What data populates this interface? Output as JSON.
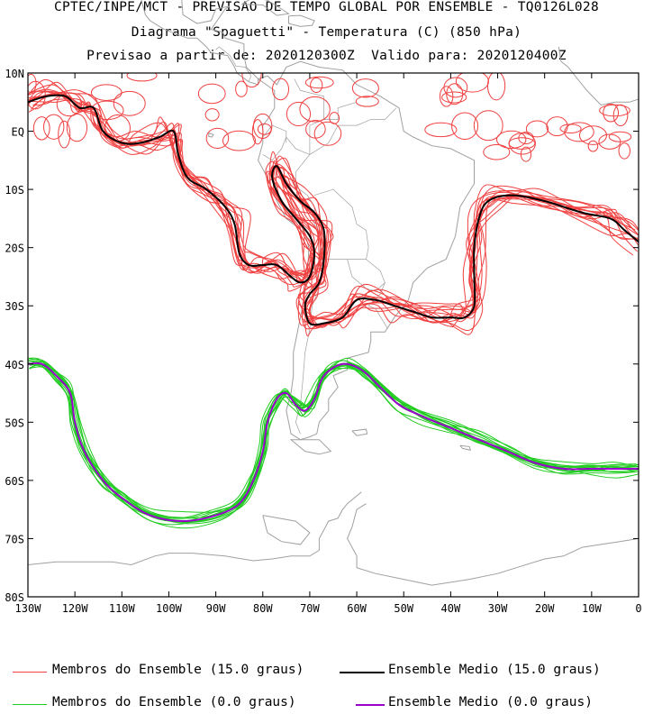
{
  "header": {
    "line1": "CPTEC/INPE/MCT - PREVISAO DE TEMPO GLOBAL POR ENSEMBLE - TQ0126L028",
    "line2": "Diagrama \"Spaguetti\" - Temperatura (C) (850 hPa)",
    "line3": "Previsao a partir de: 2020120300Z  Valido para: 2020120400Z"
  },
  "legend": {
    "members_15": "Membros do Ensemble (15.0 graus)",
    "mean_15": "Ensemble Medio (15.0 graus)",
    "members_0": "Membros do Ensemble (0.0 graus)",
    "mean_0": "Ensemble Medio (0.0 graus)"
  },
  "colors": {
    "members_15": "#f04040",
    "mean_15": "#000000",
    "members_0": "#22cc22",
    "mean_0": "#9900cc",
    "coast": "#a0a0a0"
  },
  "chart_data": {
    "type": "line",
    "title": "Diagrama \"Spaguetti\" - Temperatura (C) (850 hPa)",
    "x_ticks": [
      "130W",
      "120W",
      "110W",
      "100W",
      "90W",
      "80W",
      "70W",
      "60W",
      "50W",
      "40W",
      "30W",
      "20W",
      "10W",
      "0"
    ],
    "y_ticks": [
      "10N",
      "EQ",
      "10S",
      "20S",
      "30S",
      "40S",
      "50S",
      "60S",
      "70S",
      "80S"
    ],
    "xlim": [
      -130,
      0
    ],
    "ylim": [
      -80,
      10
    ],
    "series": [
      {
        "name": "Ensemble Medio (15.0 graus)",
        "role": "mean_15",
        "points": [
          [
            -130,
            5
          ],
          [
            -126,
            6
          ],
          [
            -122,
            6
          ],
          [
            -119,
            4
          ],
          [
            -116,
            4
          ],
          [
            -114,
            0
          ],
          [
            -110,
            -2
          ],
          [
            -106,
            -2
          ],
          [
            -102,
            -1
          ],
          [
            -99,
            0
          ],
          [
            -98,
            -4
          ],
          [
            -96,
            -8
          ],
          [
            -92,
            -10
          ],
          [
            -88,
            -13
          ],
          [
            -86,
            -16
          ],
          [
            -85,
            -21
          ],
          [
            -83,
            -23
          ],
          [
            -80,
            -23
          ],
          [
            -77,
            -23
          ],
          [
            -74,
            -25
          ],
          [
            -72,
            -26
          ],
          [
            -70,
            -25
          ],
          [
            -69,
            -21
          ],
          [
            -70,
            -18
          ],
          [
            -73,
            -15
          ],
          [
            -76,
            -12
          ],
          [
            -78,
            -8
          ],
          [
            -77,
            -6
          ],
          [
            -75,
            -9
          ],
          [
            -72,
            -12
          ],
          [
            -69,
            -14
          ],
          [
            -67,
            -17
          ],
          [
            -67,
            -22
          ],
          [
            -68,
            -26
          ],
          [
            -70,
            -28
          ],
          [
            -71,
            -30
          ],
          [
            -70,
            -33
          ],
          [
            -67,
            -33
          ],
          [
            -63,
            -32
          ],
          [
            -60,
            -29
          ],
          [
            -56,
            -29
          ],
          [
            -52,
            -30
          ],
          [
            -48,
            -31
          ],
          [
            -44,
            -32
          ],
          [
            -40,
            -32
          ],
          [
            -37,
            -32
          ],
          [
            -35,
            -30
          ],
          [
            -35,
            -25
          ],
          [
            -35,
            -20
          ],
          [
            -34,
            -15
          ],
          [
            -32,
            -12
          ],
          [
            -27,
            -11
          ],
          [
            -20,
            -12
          ],
          [
            -12,
            -14
          ],
          [
            -6,
            -15
          ],
          [
            -3,
            -17
          ],
          [
            0,
            -19
          ]
        ]
      },
      {
        "name": "Ensemble Medio (0.0 graus)",
        "role": "mean_0",
        "points": [
          [
            -130,
            -40
          ],
          [
            -127,
            -40
          ],
          [
            -124,
            -42
          ],
          [
            -121,
            -45
          ],
          [
            -120,
            -50
          ],
          [
            -118,
            -55
          ],
          [
            -114,
            -60
          ],
          [
            -110,
            -63
          ],
          [
            -104,
            -66
          ],
          [
            -97,
            -67
          ],
          [
            -90,
            -66
          ],
          [
            -85,
            -64
          ],
          [
            -82,
            -60
          ],
          [
            -80,
            -55
          ],
          [
            -79,
            -50
          ],
          [
            -77,
            -46
          ],
          [
            -75,
            -45
          ],
          [
            -73,
            -47
          ],
          [
            -71,
            -48
          ],
          [
            -69,
            -46
          ],
          [
            -67,
            -42
          ],
          [
            -63,
            -40
          ],
          [
            -59,
            -41
          ],
          [
            -55,
            -44
          ],
          [
            -51,
            -47
          ],
          [
            -46,
            -49
          ],
          [
            -40,
            -51
          ],
          [
            -34,
            -53
          ],
          [
            -28,
            -55
          ],
          [
            -22,
            -57
          ],
          [
            -16,
            -58
          ],
          [
            -10,
            -58
          ],
          [
            -5,
            -58
          ],
          [
            0,
            -58
          ]
        ]
      }
    ]
  }
}
